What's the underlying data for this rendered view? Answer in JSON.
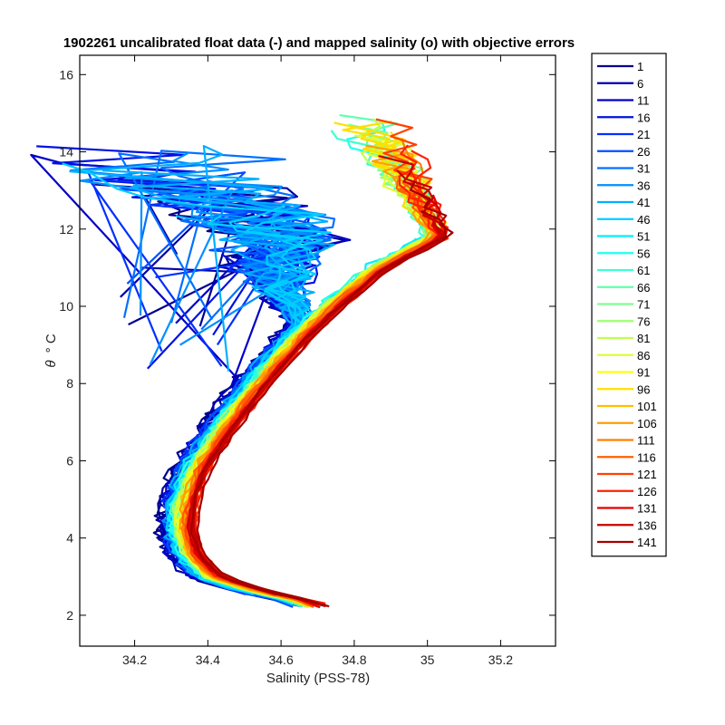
{
  "chart_data": {
    "type": "line",
    "title": "1902261 uncalibrated float data (-) and mapped salinity (o) with objective errors",
    "xlabel": "Salinity (PSS-78)",
    "ylabel_symbol": "θ",
    "ylabel_unit": "° C",
    "xlim": [
      34.05,
      35.35
    ],
    "ylim": [
      1.2,
      16.5
    ],
    "xticks": [
      34.2,
      34.4,
      34.6,
      34.8,
      35,
      35.2
    ],
    "xtick_labels": [
      "34.2",
      "34.4",
      "34.6",
      "34.8",
      "35",
      "35.2"
    ],
    "yticks": [
      2,
      4,
      6,
      8,
      10,
      12,
      14,
      16
    ],
    "ytick_labels": [
      "2",
      "4",
      "6",
      "8",
      "10",
      "12",
      "14",
      "16"
    ],
    "grid": false,
    "legend_placement": "outside-right",
    "colormap": "jet",
    "series": [
      {
        "name": "1",
        "color": "#00008F"
      },
      {
        "name": "6",
        "color": "#0000AB"
      },
      {
        "name": "11",
        "color": "#0000C7"
      },
      {
        "name": "16",
        "color": "#0010E3"
      },
      {
        "name": "21",
        "color": "#0030FF"
      },
      {
        "name": "26",
        "color": "#0050FF"
      },
      {
        "name": "31",
        "color": "#0070FF"
      },
      {
        "name": "36",
        "color": "#008FFF"
      },
      {
        "name": "41",
        "color": "#00AFFF"
      },
      {
        "name": "46",
        "color": "#00CFFF"
      },
      {
        "name": "51",
        "color": "#00EFFF"
      },
      {
        "name": "56",
        "color": "#20FFEF"
      },
      {
        "name": "61",
        "color": "#40FFCF"
      },
      {
        "name": "66",
        "color": "#60FFAF"
      },
      {
        "name": "71",
        "color": "#80FF8F"
      },
      {
        "name": "76",
        "color": "#9FFF70"
      },
      {
        "name": "81",
        "color": "#BFFF50"
      },
      {
        "name": "86",
        "color": "#DFFF30"
      },
      {
        "name": "91",
        "color": "#FFFF10"
      },
      {
        "name": "96",
        "color": "#FFDF00"
      },
      {
        "name": "101",
        "color": "#FFBF00"
      },
      {
        "name": "106",
        "color": "#FF9F00"
      },
      {
        "name": "111",
        "color": "#FF8000"
      },
      {
        "name": "116",
        "color": "#FF6000"
      },
      {
        "name": "121",
        "color": "#FF4000"
      },
      {
        "name": "126",
        "color": "#FF2000"
      },
      {
        "name": "131",
        "color": "#E30000"
      },
      {
        "name": "136",
        "color": "#C70000"
      },
      {
        "name": "141",
        "color": "#A30000"
      }
    ],
    "approx_profile_shape": [
      [
        34.7,
        2.3
      ],
      [
        34.55,
        2.6
      ],
      [
        34.42,
        3.0
      ],
      [
        34.36,
        3.6
      ],
      [
        34.34,
        4.3
      ],
      [
        34.35,
        5.0
      ],
      [
        34.38,
        5.8
      ],
      [
        34.45,
        6.8
      ],
      [
        34.53,
        7.8
      ],
      [
        34.6,
        8.6
      ],
      [
        34.68,
        9.4
      ],
      [
        34.77,
        10.2
      ],
      [
        34.86,
        10.9
      ],
      [
        34.95,
        11.4
      ],
      [
        35.05,
        11.8
      ]
    ]
  }
}
